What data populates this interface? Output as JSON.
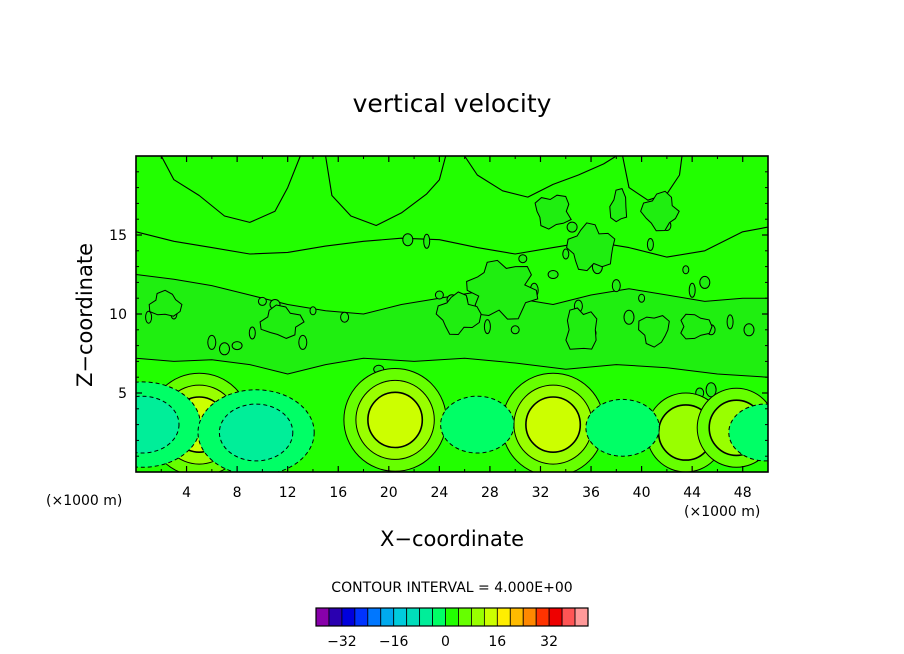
{
  "chart_data": {
    "type": "heatmap",
    "title": "vertical velocity",
    "xlabel": "X−coordinate",
    "ylabel": "Z−coordinate",
    "x_unit": "(×1000 m)",
    "y_unit": "(×1000 m)",
    "xlim": [
      0,
      50
    ],
    "ylim": [
      0,
      20
    ],
    "xticks": [
      4,
      8,
      12,
      16,
      20,
      24,
      28,
      32,
      36,
      40,
      44,
      48
    ],
    "yticks": [
      5,
      10,
      15
    ],
    "contour_interval_label": "CONTOUR INTERVAL =  4.000E+00",
    "contour_interval": 4.0,
    "colorbar": {
      "levels": [
        -36,
        -32,
        -28,
        -24,
        -20,
        -16,
        -12,
        -8,
        -4,
        0,
        4,
        8,
        12,
        16,
        20,
        24,
        28,
        32,
        36
      ],
      "colors": [
        "#8800aa",
        "#2a00b0",
        "#0000dd",
        "#0033ff",
        "#0077ff",
        "#00aaee",
        "#00ccdd",
        "#00ddbb",
        "#00ee99",
        "#00ff66",
        "#22ff00",
        "#66ff00",
        "#99ff00",
        "#ccff00",
        "#ffee00",
        "#ffbb00",
        "#ff8800",
        "#ff3300",
        "#ee0000",
        "#ff5555",
        "#ff9999"
      ],
      "tick_labels": [
        "−32",
        "−16",
        "0",
        "16",
        "32"
      ],
      "tick_values": [
        -32,
        -16,
        0,
        16,
        32
      ]
    },
    "features": [
      {
        "kind": "updraft",
        "x": 5.0,
        "z": 3.0,
        "max": 12
      },
      {
        "kind": "updraft",
        "x": 20.5,
        "z": 3.3,
        "max": 12
      },
      {
        "kind": "updraft",
        "x": 33.0,
        "z": 3.0,
        "max": 12
      },
      {
        "kind": "updraft",
        "x": 43.5,
        "z": 2.5,
        "max": 8
      },
      {
        "kind": "updraft",
        "x": 47.5,
        "z": 2.8,
        "max": 8
      },
      {
        "kind": "downdraft",
        "x": 0.5,
        "z": 3.0,
        "min": -8
      },
      {
        "kind": "downdraft",
        "x": 9.5,
        "z": 2.5,
        "min": -8
      },
      {
        "kind": "downdraft",
        "x": 27.0,
        "z": 3.0,
        "min": -4
      },
      {
        "kind": "downdraft",
        "x": 38.5,
        "z": 2.8,
        "min": -4
      },
      {
        "kind": "downdraft",
        "x": 49.8,
        "z": 2.5,
        "min": -4
      }
    ]
  }
}
